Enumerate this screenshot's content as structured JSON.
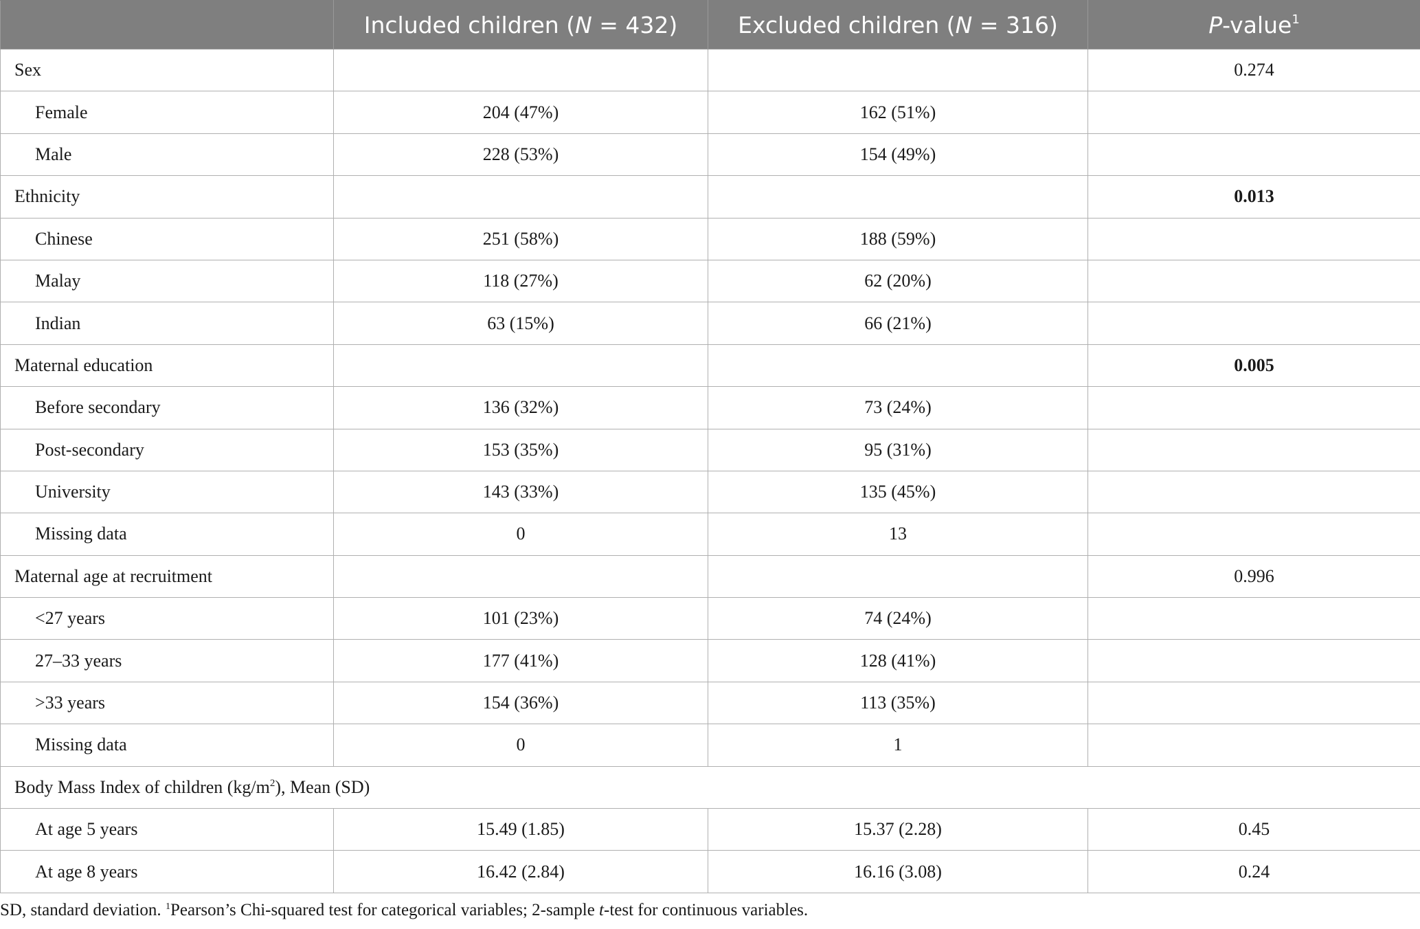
{
  "table": {
    "headers": {
      "col1": "",
      "col2_prefix": "Included children (",
      "col2_italic": "N",
      "col2_suffix": " = 432)",
      "col3_prefix": "Excluded children (",
      "col3_italic": "N",
      "col3_suffix": " = 316)",
      "col4_italic": "P",
      "col4_suffix": "-value",
      "col4_sup": "1"
    },
    "rows": [
      {
        "label": "Sex",
        "included": "",
        "excluded": "",
        "p": "0.274"
      },
      {
        "label": "Female",
        "included": "204 (47%)",
        "excluded": "162 (51%)",
        "p": ""
      },
      {
        "label": "Male",
        "included": "228 (53%)",
        "excluded": "154 (49%)",
        "p": ""
      },
      {
        "label": "Ethnicity",
        "included": "",
        "excluded": "",
        "p": "0.013"
      },
      {
        "label": "Chinese",
        "included": "251 (58%)",
        "excluded": "188 (59%)",
        "p": ""
      },
      {
        "label": "Malay",
        "included": "118 (27%)",
        "excluded": "62 (20%)",
        "p": ""
      },
      {
        "label": "Indian",
        "included": "63 (15%)",
        "excluded": "66 (21%)",
        "p": ""
      },
      {
        "label": "Maternal education",
        "included": "",
        "excluded": "",
        "p": "0.005"
      },
      {
        "label": "Before secondary",
        "included": "136 (32%)",
        "excluded": "73 (24%)",
        "p": ""
      },
      {
        "label": "Post-secondary",
        "included": "153 (35%)",
        "excluded": "95 (31%)",
        "p": ""
      },
      {
        "label": "University",
        "included": "143 (33%)",
        "excluded": "135 (45%)",
        "p": ""
      },
      {
        "label": "Missing data",
        "included": "0",
        "excluded": "13",
        "p": ""
      },
      {
        "label": "Maternal age at recruitment",
        "included": "",
        "excluded": "",
        "p": "0.996"
      },
      {
        "label": "<27 years",
        "included": "101 (23%)",
        "excluded": "74 (24%)",
        "p": ""
      },
      {
        "label": "27–33 years",
        "included": "177 (41%)",
        "excluded": "128 (41%)",
        "p": ""
      },
      {
        "label": ">33 years",
        "included": "154 (36%)",
        "excluded": "113 (35%)",
        "p": ""
      },
      {
        "label": "Missing data",
        "included": "0",
        "excluded": "1",
        "p": ""
      },
      {
        "label_prefix": "Body Mass Index of children (kg/m",
        "label_sup": "2",
        "label_suffix": "), Mean (SD)"
      },
      {
        "label": "At age 5 years",
        "included": "15.49 (1.85)",
        "excluded": "15.37 (2.28)",
        "p": "0.45"
      },
      {
        "label": "At age 8 years",
        "included": "16.42 (2.84)",
        "excluded": "16.16 (3.08)",
        "p": "0.24"
      }
    ]
  },
  "footnote": {
    "part1": "SD, standard deviation. ",
    "sup": "1",
    "part2": "Pearson’s Chi-squared test for categorical variables; 2-sample ",
    "italic": "t",
    "part3": "-test for continuous variables."
  }
}
